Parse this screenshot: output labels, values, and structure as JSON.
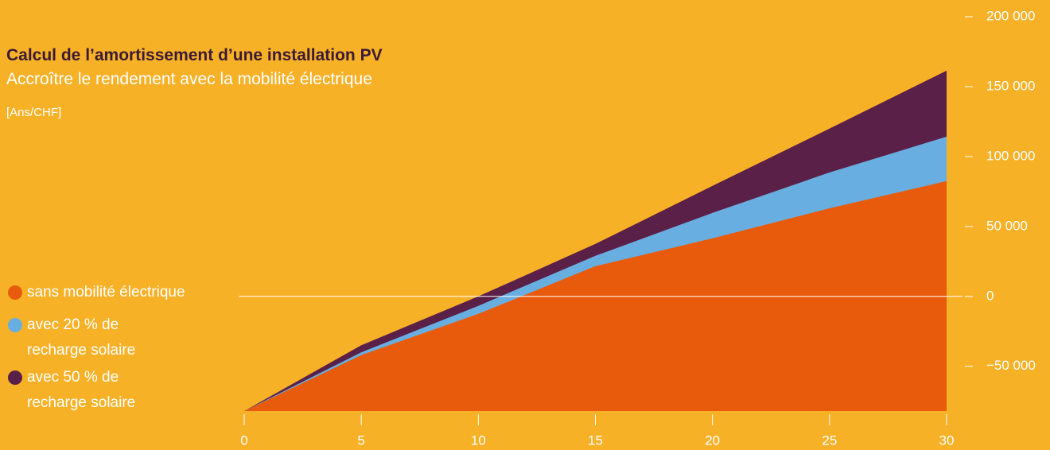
{
  "chart_data": {
    "type": "area",
    "title": "Calcul de l’amortissement d’une installation PV",
    "subtitle": "Accroître le rendement avec la mobilité électrique",
    "unit_label": "[Ans/CHF]",
    "x": [
      0,
      5,
      10,
      15,
      20,
      25,
      30
    ],
    "series": [
      {
        "name": "sans mobilité électrique",
        "color": "#e85b0c",
        "values": [
          -82000,
          -42000,
          -12500,
          21600,
          41500,
          63000,
          82400
        ]
      },
      {
        "name": "avec 20 % de recharge solaire",
        "color": "#69aee0",
        "values": [
          -82000,
          -40000,
          -6800,
          29000,
          59700,
          88600,
          114200
        ]
      },
      {
        "name": "avec 50 % de recharge solaire",
        "color": "#5a2047",
        "values": [
          -82000,
          -35000,
          0,
          37500,
          79000,
          120000,
          161400
        ]
      }
    ],
    "xlim": [
      0,
      30
    ],
    "xticks": [
      0,
      5,
      10,
      15,
      20,
      25,
      30
    ],
    "ylim": [
      -82000,
      200000
    ],
    "yticks": [
      {
        "value": -50000,
        "label": "−50 000"
      },
      0,
      {
        "value": 50000,
        "label": "50 000"
      },
      {
        "value": 100000,
        "label": "100 000"
      },
      {
        "value": 150000,
        "label": "150 000"
      },
      {
        "value": 200000,
        "label": "200 000"
      }
    ]
  }
}
